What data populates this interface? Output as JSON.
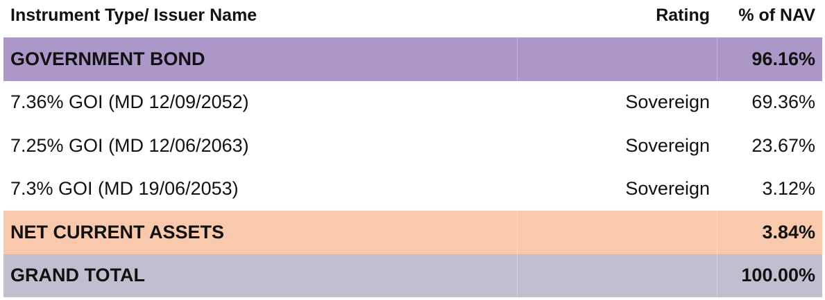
{
  "table": {
    "header": [
      "Instrument Type/ Issuer Name",
      "Rating",
      "% of NAV"
    ],
    "rows": [
      {
        "kind": "section",
        "name": "GOVERNMENT BOND",
        "nav": "96.16%"
      },
      {
        "kind": "item",
        "name": "7.36% GOI (MD 12/09/2052)",
        "rating": "Sovereign",
        "nav": "69.36%"
      },
      {
        "kind": "item",
        "name": "7.25% GOI (MD 12/06/2063)",
        "rating": "Sovereign",
        "nav": "23.67%"
      },
      {
        "kind": "item",
        "name": "7.3% GOI (MD 19/06/2053)",
        "rating": "Sovereign",
        "nav": "3.12%"
      },
      {
        "kind": "net",
        "name": "NET CURRENT ASSETS",
        "nav": "3.84%"
      },
      {
        "kind": "total",
        "name": "GRAND TOTAL",
        "nav": "100.00%"
      }
    ]
  }
}
